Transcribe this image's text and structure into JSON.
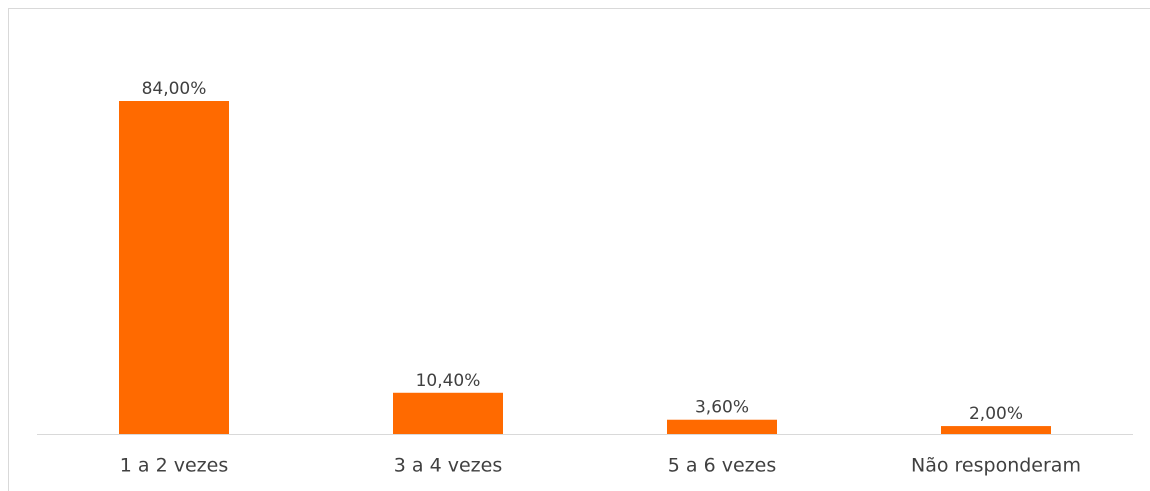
{
  "chart_data": {
    "type": "bar",
    "categories": [
      "1 a 2 vezes",
      "3 a 4 vezes",
      "5 a 6 vezes",
      "Não responderam"
    ],
    "values": [
      84,
      10.4,
      3.6,
      2
    ],
    "value_labels": [
      "84,00%",
      "10,40%",
      "3,60%",
      "2,00%"
    ],
    "color": "#ff6a00"
  }
}
